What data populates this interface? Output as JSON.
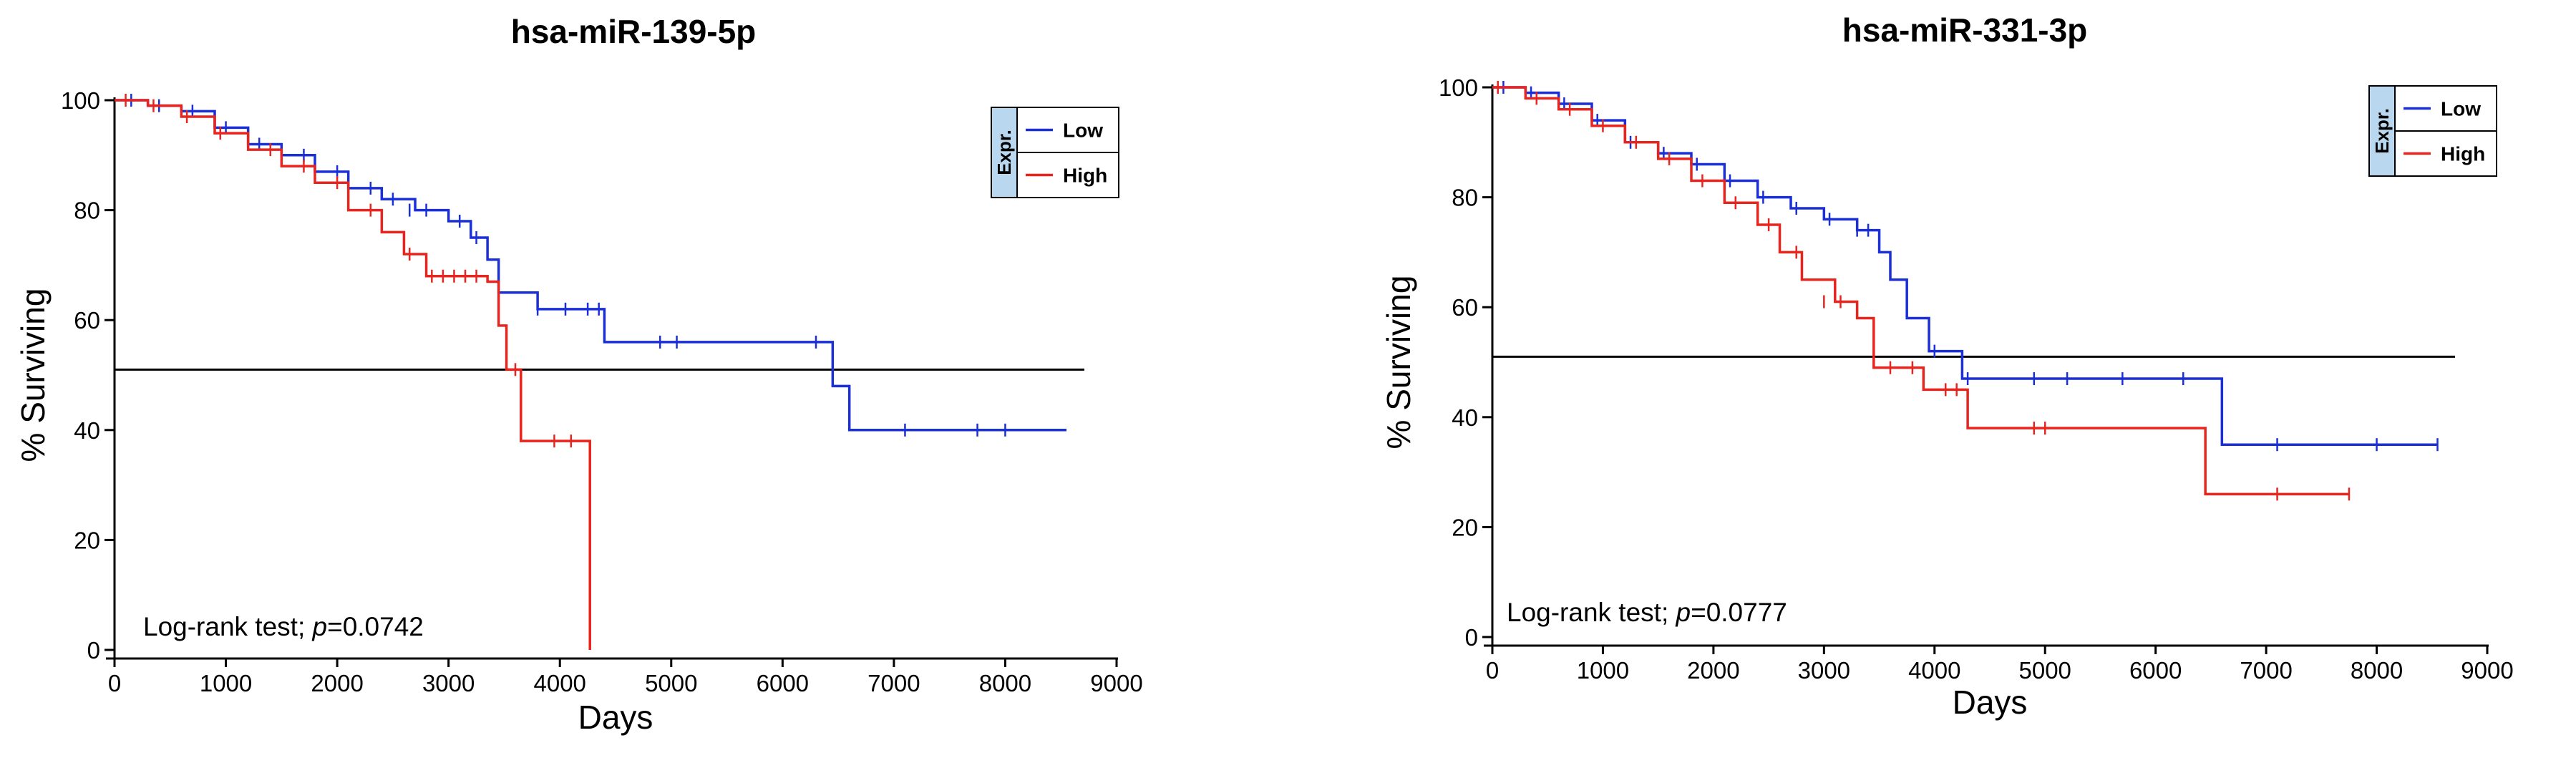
{
  "chart_data": [
    {
      "type": "line",
      "title": "hsa-miR-139-5p",
      "xlabel": "Days",
      "ylabel": "% Surviving",
      "xlim": [
        0,
        9000
      ],
      "ylim": [
        0,
        100
      ],
      "xticks": [
        0,
        1000,
        2000,
        3000,
        4000,
        5000,
        6000,
        7000,
        8000,
        9000
      ],
      "yticks": [
        0,
        20,
        40,
        60,
        80,
        100
      ],
      "reference_line_y": 51,
      "legend": {
        "title": "Expr.",
        "placement": "top-right",
        "entries": [
          "Low",
          "High"
        ]
      },
      "annotation": {
        "prefix": "Log-rank test; ",
        "italic": "p",
        "suffix": "=0.0742"
      },
      "series": [
        {
          "name": "Low",
          "color": "#1a2fd6",
          "x": [
            0,
            300,
            600,
            900,
            1200,
            1500,
            1800,
            2100,
            2400,
            2700,
            3000,
            3200,
            3350,
            3450,
            3800,
            4400,
            6450,
            6600,
            8550
          ],
          "y": [
            100,
            99,
            98,
            95,
            92,
            90,
            87,
            84,
            82,
            80,
            78,
            75,
            71,
            65,
            62,
            56,
            48,
            40,
            40
          ],
          "censor_x": [
            150,
            400,
            700,
            1000,
            1300,
            1700,
            2000,
            2300,
            2500,
            2650,
            2800,
            3100,
            3250,
            3800,
            4050,
            4250,
            4350,
            4900,
            5050,
            6300,
            7100,
            7750,
            8000
          ],
          "censor_y": [
            100,
            99,
            98,
            95,
            92,
            90,
            87,
            84,
            82,
            80,
            80,
            78,
            75,
            62,
            62,
            62,
            62,
            56,
            56,
            56,
            40,
            40,
            40
          ]
        },
        {
          "name": "High",
          "color": "#e8241e",
          "x": [
            0,
            300,
            600,
            900,
            1200,
            1500,
            1800,
            2100,
            2400,
            2600,
            2800,
            3350,
            3450,
            3520,
            3650,
            4250,
            4270
          ],
          "y": [
            100,
            99,
            97,
            94,
            91,
            88,
            85,
            80,
            76,
            72,
            68,
            67,
            59,
            51,
            38,
            38,
            0
          ],
          "censor_x": [
            100,
            350,
            650,
            950,
            1400,
            1700,
            2000,
            2300,
            2650,
            2850,
            2950,
            3050,
            3150,
            3250,
            3600,
            3950,
            4100
          ],
          "censor_y": [
            100,
            99,
            97,
            94,
            91,
            88,
            85,
            80,
            72,
            68,
            68,
            68,
            68,
            68,
            51,
            38,
            38
          ]
        }
      ]
    },
    {
      "type": "line",
      "title": "hsa-miR-331-3p",
      "xlabel": "Days",
      "ylabel": "% Surviving",
      "xlim": [
        0,
        9000
      ],
      "ylim": [
        0,
        100
      ],
      "xticks": [
        0,
        1000,
        2000,
        3000,
        4000,
        5000,
        6000,
        7000,
        8000,
        9000
      ],
      "yticks": [
        0,
        20,
        40,
        60,
        80,
        100
      ],
      "reference_line_y": 51,
      "legend": {
        "title": "Expr.",
        "placement": "top-right",
        "entries": [
          "Low",
          "High"
        ]
      },
      "annotation": {
        "prefix": "Log-rank test; ",
        "italic": "p",
        "suffix": "=0.0777"
      },
      "series": [
        {
          "name": "Low",
          "color": "#1a2fd6",
          "x": [
            0,
            300,
            600,
            900,
            1200,
            1500,
            1800,
            2100,
            2400,
            2700,
            3000,
            3300,
            3500,
            3600,
            3750,
            3950,
            4250,
            6600,
            8550
          ],
          "y": [
            100,
            99,
            97,
            94,
            90,
            88,
            86,
            83,
            80,
            78,
            76,
            74,
            70,
            65,
            58,
            52,
            47,
            35,
            35
          ],
          "censor_x": [
            100,
            350,
            650,
            950,
            1250,
            1550,
            1850,
            2150,
            2450,
            2750,
            3050,
            3300,
            3400,
            4000,
            4300,
            4900,
            5200,
            5700,
            6250,
            7100,
            8000,
            8550
          ],
          "censor_y": [
            100,
            99,
            97,
            94,
            90,
            88,
            86,
            83,
            80,
            78,
            76,
            74,
            74,
            52,
            47,
            47,
            47,
            47,
            47,
            35,
            35,
            35
          ]
        },
        {
          "name": "High",
          "color": "#e8241e",
          "x": [
            0,
            300,
            600,
            900,
            1200,
            1500,
            1800,
            2100,
            2400,
            2600,
            2800,
            3100,
            3300,
            3450,
            3900,
            4300,
            6450,
            7750
          ],
          "y": [
            100,
            98,
            96,
            93,
            90,
            87,
            83,
            79,
            75,
            70,
            65,
            61,
            58,
            49,
            45,
            38,
            26,
            26
          ],
          "censor_x": [
            50,
            400,
            700,
            1000,
            1300,
            1600,
            1900,
            2200,
            2500,
            2750,
            3000,
            3150,
            3600,
            3800,
            4100,
            4200,
            4900,
            5000,
            7100,
            7750
          ],
          "censor_y": [
            100,
            98,
            96,
            93,
            90,
            87,
            83,
            79,
            75,
            70,
            61,
            61,
            49,
            49,
            45,
            45,
            38,
            38,
            26,
            26
          ]
        }
      ]
    }
  ]
}
